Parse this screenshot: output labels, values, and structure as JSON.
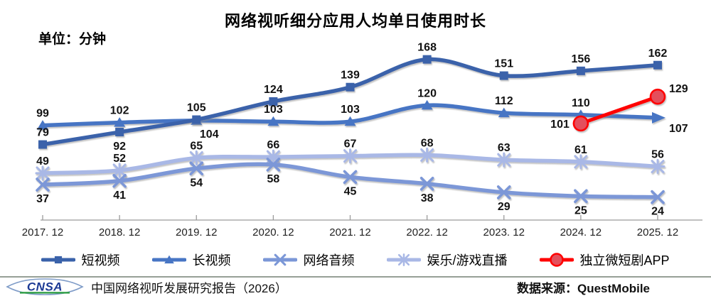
{
  "chart_data": {
    "type": "line",
    "title": "网络视听细分应用人均单日使用时长",
    "unit_label": "单位：分钟",
    "xlabel": "",
    "ylabel": "分钟",
    "ylim": [
      0,
      180
    ],
    "grid": false,
    "legend_position": "bottom",
    "categories": [
      "2017. 12",
      "2018. 12",
      "2019. 12",
      "2020. 12",
      "2021. 12",
      "2022. 12",
      "2023. 12",
      "2024. 12",
      "2025. 12"
    ],
    "series": [
      {
        "name": "短视频",
        "marker": "square",
        "color": "#3a62aa",
        "values": [
          79,
          92,
          105,
          124,
          139,
          168,
          151,
          156,
          162
        ],
        "label_sides": [
          "above",
          "below",
          "above",
          "above",
          "above",
          "above",
          "above",
          "above",
          "above"
        ]
      },
      {
        "name": "长视频",
        "marker": "triangle",
        "color": "#4775c4",
        "end_arrow": true,
        "values": [
          99,
          102,
          104,
          103,
          103,
          120,
          112,
          110,
          107
        ],
        "label_sides": [
          "above",
          "above",
          "below-right",
          "above",
          "above",
          "above",
          "above",
          "above",
          "right-below"
        ]
      },
      {
        "name": "网络音频",
        "marker": "x",
        "color": "#7b97d7",
        "values": [
          37,
          41,
          54,
          58,
          45,
          38,
          29,
          25,
          24
        ],
        "label_sides": [
          "below",
          "below",
          "below",
          "below",
          "below",
          "below",
          "below",
          "below",
          "below"
        ]
      },
      {
        "name": "娱乐/游戏直播",
        "marker": "asterisk",
        "color": "#a9b8e6",
        "values": [
          49,
          52,
          65,
          66,
          67,
          68,
          63,
          61,
          56
        ],
        "label_sides": [
          "above",
          "above",
          "above",
          "above",
          "above",
          "above",
          "above",
          "above",
          "above"
        ]
      },
      {
        "name": "独立微短剧APP",
        "marker": "circle",
        "color": "#ff0000",
        "marker_fill": "#e4505c",
        "values": [
          null,
          null,
          null,
          null,
          null,
          null,
          null,
          101,
          129
        ],
        "label_sides": [
          "",
          "",
          "",
          "",
          "",
          "",
          "",
          "left",
          "right-above"
        ]
      }
    ]
  },
  "footer": {
    "logo_text": "CNSA",
    "report_label": "中国网络视听发展研究报告（2026）",
    "source_label": "数据来源：QuestMobile"
  }
}
